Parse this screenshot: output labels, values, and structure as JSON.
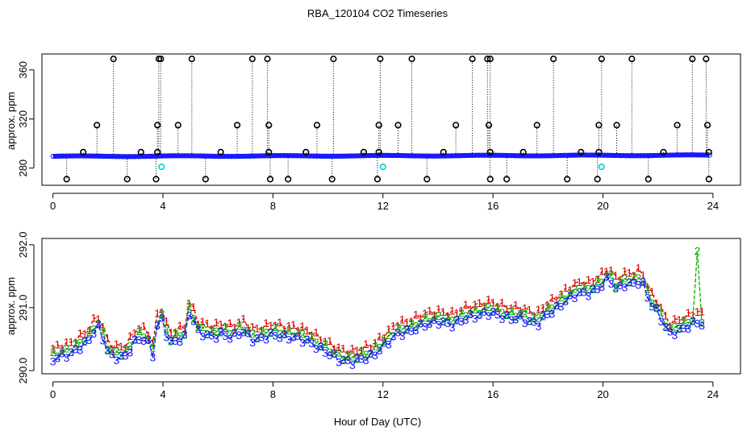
{
  "figure": {
    "title": "RBA_120104  CO2 Timeseries",
    "xlabel": "Hour of Day (UTC)"
  },
  "colors": {
    "axis": "#000000",
    "stick": "#000000",
    "trace": "#1a1aff",
    "outlier_cyan": "#00d0d0",
    "series1": "#dd0000",
    "series2": "#00b000",
    "series3": "#1a1aff"
  },
  "chart_data": [
    {
      "id": "top",
      "type": "scatter",
      "title": "",
      "xlabel": "",
      "ylabel": "approx. ppm",
      "xlim": [
        -0.4,
        25.0
      ],
      "ylim": [
        266,
        373
      ],
      "xticks": [
        0,
        4,
        8,
        12,
        16,
        20,
        24
      ],
      "yticks": [
        280,
        320,
        360
      ],
      "baseline": {
        "start": 289.6,
        "end": 290.5,
        "wave_amp": 0.3
      },
      "high_outliers": {
        "value": 369,
        "hours": [
          2.2,
          3.85,
          3.92,
          5.05,
          7.25,
          7.8,
          10.2,
          11.9,
          13.05,
          15.25,
          15.8,
          15.9,
          18.2,
          19.95,
          21.05,
          23.25,
          23.75
        ]
      },
      "mid_outliers": {
        "value": 315,
        "hours": [
          1.6,
          3.8,
          4.55,
          6.7,
          7.85,
          9.6,
          11.85,
          12.55,
          14.65,
          15.85,
          17.6,
          19.85,
          20.5,
          22.7,
          23.8
        ]
      },
      "low_outliers": {
        "value": 271,
        "hours": [
          0.5,
          2.7,
          3.75,
          5.55,
          7.9,
          8.55,
          10.15,
          11.8,
          13.6,
          15.9,
          16.5,
          18.7,
          19.8,
          21.65,
          23.85
        ]
      },
      "small_outliers": {
        "value": 293,
        "hours": [
          1.1,
          3.2,
          3.8,
          6.1,
          7.85,
          9.2,
          11.3,
          11.85,
          14.2,
          15.9,
          17.1,
          19.2,
          19.85,
          22.2,
          23.85
        ]
      },
      "cyan_outliers": {
        "value": 281,
        "hours": [
          3.95,
          12.0,
          19.95
        ]
      }
    },
    {
      "id": "bottom",
      "type": "line",
      "title": "",
      "xlabel": "",
      "ylabel": "approx. ppm",
      "xlim": [
        -0.4,
        25.0
      ],
      "ylim": [
        289.95,
        292.1
      ],
      "xticks": [
        0,
        4,
        8,
        12,
        16,
        20,
        24
      ],
      "yticks": [
        290.0,
        291.0,
        292.0
      ],
      "series": [
        {
          "name": "1",
          "offset": 0.1
        },
        {
          "name": "2",
          "offset": 0.0
        },
        {
          "name": "3",
          "offset": -0.07
        }
      ],
      "anchors": {
        "hours": [
          0.0,
          0.3,
          0.7,
          1.0,
          1.3,
          1.5,
          1.7,
          1.9,
          2.1,
          2.4,
          2.7,
          2.9,
          3.2,
          3.5,
          3.65,
          3.8,
          4.0,
          4.2,
          4.5,
          4.8,
          5.0,
          5.2,
          5.5,
          5.8,
          6.1,
          6.5,
          6.9,
          7.3,
          7.7,
          8.0,
          8.4,
          8.8,
          9.2,
          9.6,
          10.0,
          10.4,
          10.8,
          11.2,
          11.6,
          12.0,
          12.5,
          13.0,
          13.5,
          14.0,
          14.5,
          15.0,
          15.5,
          15.9,
          16.2,
          16.6,
          17.0,
          17.3,
          17.6,
          17.9,
          18.3,
          18.7,
          19.1,
          19.5,
          19.9,
          20.2,
          20.5,
          20.8,
          21.1,
          21.4,
          21.7,
          21.9,
          22.1,
          22.4,
          22.7,
          23.0,
          23.2,
          23.4,
          23.6
        ],
        "values": [
          290.25,
          290.3,
          290.35,
          290.45,
          290.55,
          290.7,
          290.78,
          290.45,
          290.3,
          290.28,
          290.3,
          290.5,
          290.6,
          290.5,
          290.3,
          290.8,
          290.9,
          290.5,
          290.55,
          290.6,
          291.1,
          290.7,
          290.65,
          290.6,
          290.65,
          290.6,
          290.7,
          290.55,
          290.6,
          290.65,
          290.6,
          290.6,
          290.55,
          290.45,
          290.35,
          290.25,
          290.2,
          290.25,
          290.3,
          290.45,
          290.65,
          290.7,
          290.8,
          290.85,
          290.8,
          290.9,
          290.95,
          291.0,
          290.95,
          290.9,
          290.9,
          290.85,
          290.8,
          290.95,
          291.05,
          291.2,
          291.3,
          291.3,
          291.4,
          291.55,
          291.35,
          291.45,
          291.45,
          291.5,
          291.15,
          291.05,
          290.9,
          290.65,
          290.7,
          290.75,
          290.8,
          290.85,
          290.8
        ],
        "spike": {
          "hour": 23.4,
          "value": 291.9
        }
      }
    }
  ]
}
